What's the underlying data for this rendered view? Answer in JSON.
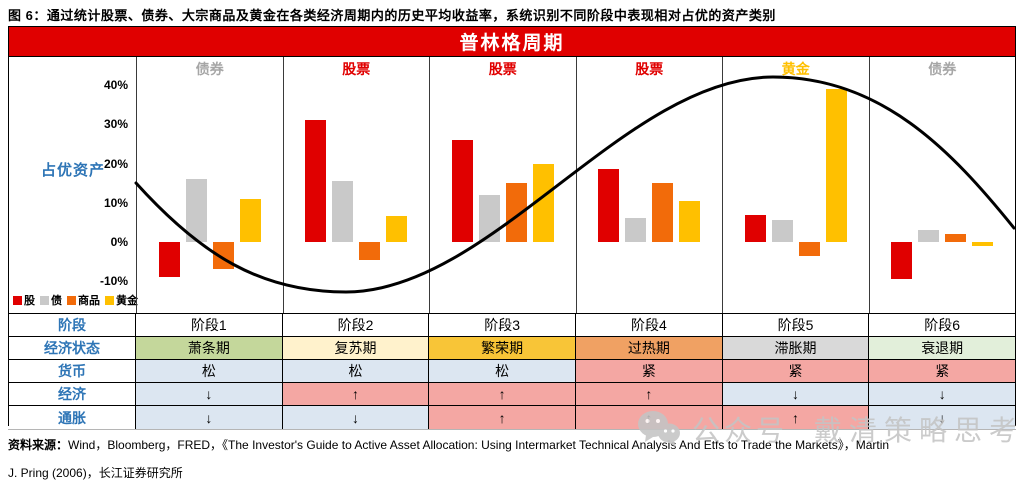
{
  "caption": "图 6：通过统计股票、债券、大宗商品及黄金在各类经济周期内的历史平均收益率，系统识别不同阶段中表现相对占优的资产类别",
  "banner": {
    "title": "普林格周期",
    "bg": "#E00000"
  },
  "chart": {
    "ylabel": "占优资产",
    "ylabel_color": "#2E75B6"
  },
  "chart_data": {
    "type": "bar",
    "title": "普林格周期",
    "categories": [
      "阶段1",
      "阶段2",
      "阶段3",
      "阶段4",
      "阶段5",
      "阶段6"
    ],
    "series": [
      {
        "key": "stock",
        "name": "股",
        "color": "#E00000",
        "values": [
          -9,
          31,
          26,
          18.5,
          7,
          -9.5
        ]
      },
      {
        "key": "bond",
        "name": "债",
        "color": "#C9C9C9",
        "values": [
          16,
          15.5,
          12,
          6,
          5.5,
          3
        ]
      },
      {
        "key": "commodity",
        "name": "商品",
        "color": "#F26B0A",
        "values": [
          -7,
          -4.5,
          15,
          15,
          -3.5,
          2
        ]
      },
      {
        "key": "gold",
        "name": "黄金",
        "color": "#FFC000",
        "values": [
          11,
          6.5,
          20,
          10.5,
          39,
          -1
        ]
      }
    ],
    "yticks": [
      "40%",
      "30%",
      "20%",
      "10%",
      "0%",
      "-10%"
    ],
    "ylim": [
      -13,
      44
    ],
    "grid": false,
    "legend_position": "bottom-left",
    "phase_winners": [
      {
        "label": "债券",
        "color": "#A6A6A6"
      },
      {
        "label": "股票",
        "color": "#E00000"
      },
      {
        "label": "股票",
        "color": "#E00000"
      },
      {
        "label": "股票",
        "color": "#E00000"
      },
      {
        "label": "黄金",
        "color": "#FFC000"
      },
      {
        "label": "债券",
        "color": "#A6A6A6"
      }
    ],
    "overlay": "黑色经济周期曲线：起点约+15%，谷底约-13%（阶段2/3之间），峰值约+43%（阶段5），终点约+3%"
  },
  "table": {
    "header_color": "#2E75B6",
    "rows": [
      {
        "key": "stage",
        "label": "阶段",
        "cells": [
          {
            "text": "阶段1",
            "bg": "#FFFFFF"
          },
          {
            "text": "阶段2",
            "bg": "#FFFFFF"
          },
          {
            "text": "阶段3",
            "bg": "#FFFFFF"
          },
          {
            "text": "阶段4",
            "bg": "#FFFFFF"
          },
          {
            "text": "阶段5",
            "bg": "#FFFFFF"
          },
          {
            "text": "阶段6",
            "bg": "#FFFFFF"
          }
        ]
      },
      {
        "key": "economy-state",
        "label": "经济状态",
        "cells": [
          {
            "text": "萧条期",
            "bg": "#C4D79B"
          },
          {
            "text": "复苏期",
            "bg": "#FFF2CC"
          },
          {
            "text": "繁荣期",
            "bg": "#F8C537"
          },
          {
            "text": "过热期",
            "bg": "#F0A163"
          },
          {
            "text": "滞胀期",
            "bg": "#D9D9D9"
          },
          {
            "text": "衰退期",
            "bg": "#E2EFDA"
          }
        ]
      },
      {
        "key": "monetary",
        "label": "货币",
        "cells": [
          {
            "text": "松",
            "bg": "#DCE6F1"
          },
          {
            "text": "松",
            "bg": "#DCE6F1"
          },
          {
            "text": "松",
            "bg": "#DCE6F1"
          },
          {
            "text": "紧",
            "bg": "#F4A7A3"
          },
          {
            "text": "紧",
            "bg": "#F4A7A3"
          },
          {
            "text": "紧",
            "bg": "#F4A7A3"
          }
        ]
      },
      {
        "key": "economy",
        "label": "经济",
        "cells": [
          {
            "text": "↓",
            "bg": "#DCE6F1"
          },
          {
            "text": "↑",
            "bg": "#F4A7A3"
          },
          {
            "text": "↑",
            "bg": "#F4A7A3"
          },
          {
            "text": "↑",
            "bg": "#F4A7A3"
          },
          {
            "text": "↓",
            "bg": "#DCE6F1"
          },
          {
            "text": "↓",
            "bg": "#DCE6F1"
          }
        ]
      },
      {
        "key": "inflation",
        "label": "通胀",
        "cells": [
          {
            "text": "↓",
            "bg": "#DCE6F1"
          },
          {
            "text": "↓",
            "bg": "#DCE6F1"
          },
          {
            "text": "↑",
            "bg": "#F4A7A3"
          },
          {
            "text": "↑",
            "bg": "#F4A7A3"
          },
          {
            "text": "↑",
            "bg": "#F4A7A3"
          },
          {
            "text": "↓",
            "bg": "#DCE6F1"
          }
        ]
      }
    ]
  },
  "source": {
    "prefix": "资料来源：",
    "line1_rest": "Wind，Bloomberg，FRED，《The Investor's Guide to Active Asset Allocation: Using Intermarket Technical Analysis And Etfs to Trade the Markets》，Martin",
    "line2": "J. Pring (2006)，长江证券研究所"
  },
  "watermark": {
    "text1": "公众号",
    "text2": "戴清策略思考"
  }
}
